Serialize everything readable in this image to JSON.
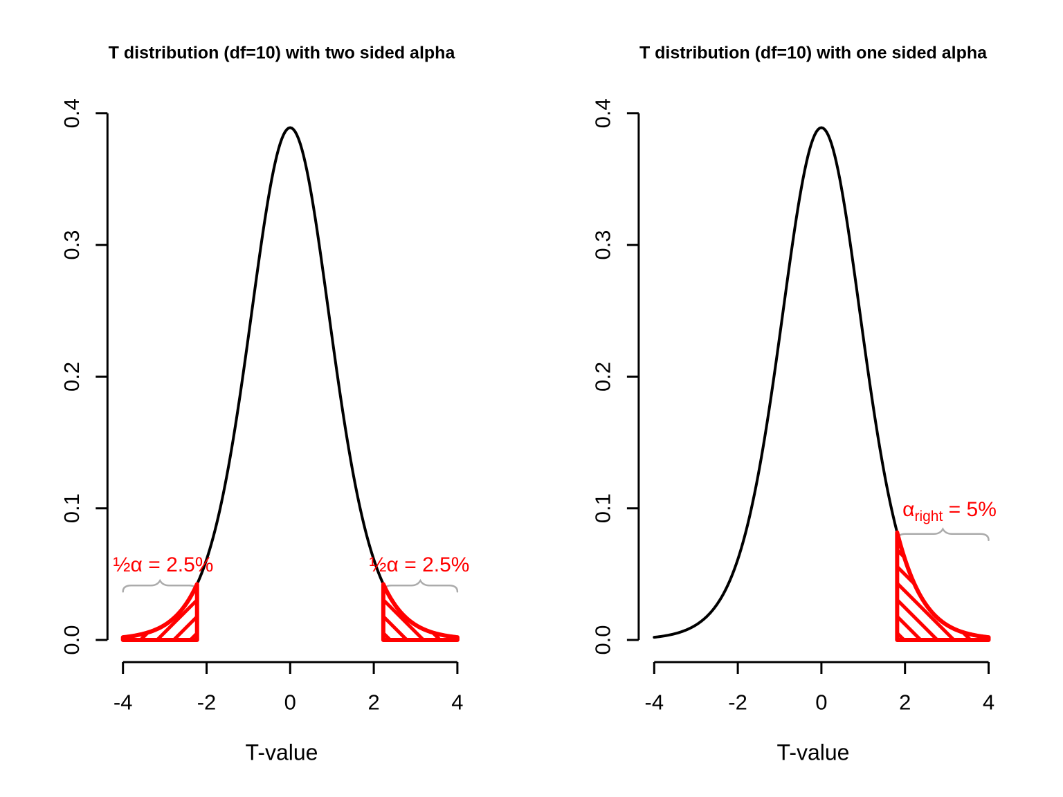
{
  "figure": {
    "background": "#ffffff"
  },
  "colors": {
    "curve": "#000000",
    "highlight": "#ff0000",
    "brace": "#ababab",
    "text": "#000000"
  },
  "chart_data": [
    {
      "type": "line",
      "title": "T distribution (df=10) with two sided alpha",
      "xlabel": "T-value",
      "ylabel": "",
      "df": 10,
      "peak_density": 0.3891,
      "xlim": [
        -4,
        4
      ],
      "ylim": [
        0,
        0.4
      ],
      "grid": false,
      "legend": "none",
      "x_ticks": [
        -4,
        -2,
        0,
        2,
        4
      ],
      "x_tick_labels": [
        "-4",
        "-2",
        "0",
        "2",
        "4"
      ],
      "y_ticks": [
        0,
        0.1,
        0.2,
        0.3,
        0.4
      ],
      "y_tick_labels": [
        "0.0",
        "0.1",
        "0.2",
        "0.3",
        "0.4"
      ],
      "alpha_total": 0.05,
      "sides": "two",
      "critical_t": [
        -2.228,
        2.228
      ],
      "tail_regions": [
        {
          "from": -4,
          "to": -2.228,
          "hatch": "forward",
          "area_pct": 2.5
        },
        {
          "from": 2.228,
          "to": 4,
          "hatch": "backward",
          "area_pct": 2.5
        }
      ],
      "annotations": [
        {
          "text": "½α = 2.5%",
          "tail": "left"
        },
        {
          "text": "½α = 2.5%",
          "tail": "right"
        }
      ],
      "curve_points": [
        [
          -4,
          0.002
        ],
        [
          -3.5,
          0.0048
        ],
        [
          -3,
          0.0114
        ],
        [
          -2.5,
          0.0268
        ],
        [
          -2.228,
          0.0424
        ],
        [
          -2,
          0.0612
        ],
        [
          -1.5,
          0.1274
        ],
        [
          -1,
          0.2304
        ],
        [
          -0.5,
          0.3397
        ],
        [
          0,
          0.3891
        ],
        [
          0.5,
          0.3397
        ],
        [
          1,
          0.2304
        ],
        [
          1.5,
          0.1274
        ],
        [
          2,
          0.0612
        ],
        [
          2.228,
          0.0424
        ],
        [
          2.5,
          0.0268
        ],
        [
          3,
          0.0114
        ],
        [
          3.5,
          0.0048
        ],
        [
          4,
          0.002
        ]
      ]
    },
    {
      "type": "line",
      "title": "T distribution (df=10) with one sided alpha",
      "xlabel": "T-value",
      "ylabel": "",
      "df": 10,
      "peak_density": 0.3891,
      "xlim": [
        -4,
        4
      ],
      "ylim": [
        0,
        0.4
      ],
      "grid": false,
      "legend": "none",
      "x_ticks": [
        -4,
        -2,
        0,
        2,
        4
      ],
      "x_tick_labels": [
        "-4",
        "-2",
        "0",
        "2",
        "4"
      ],
      "y_ticks": [
        0,
        0.1,
        0.2,
        0.3,
        0.4
      ],
      "y_tick_labels": [
        "0.0",
        "0.1",
        "0.2",
        "0.3",
        "0.4"
      ],
      "alpha_total": 0.05,
      "sides": "one",
      "critical_t": [
        1.812
      ],
      "tail_regions": [
        {
          "from": 1.812,
          "to": 4,
          "hatch": "backward",
          "area_pct": 5
        }
      ],
      "annotation_parts": {
        "alpha": "α",
        "subscript": "right",
        "rest": " = 5%"
      },
      "curve_points": [
        [
          -4,
          0.002
        ],
        [
          -3.5,
          0.0048
        ],
        [
          -3,
          0.0114
        ],
        [
          -2.5,
          0.0268
        ],
        [
          -2,
          0.0612
        ],
        [
          -1.5,
          0.1274
        ],
        [
          -1,
          0.2304
        ],
        [
          -0.5,
          0.3397
        ],
        [
          0,
          0.3891
        ],
        [
          0.5,
          0.3397
        ],
        [
          1,
          0.2304
        ],
        [
          1.5,
          0.1274
        ],
        [
          1.812,
          0.0816
        ],
        [
          2,
          0.0612
        ],
        [
          2.5,
          0.0268
        ],
        [
          3,
          0.0114
        ],
        [
          3.5,
          0.0048
        ],
        [
          4,
          0.002
        ]
      ]
    }
  ]
}
